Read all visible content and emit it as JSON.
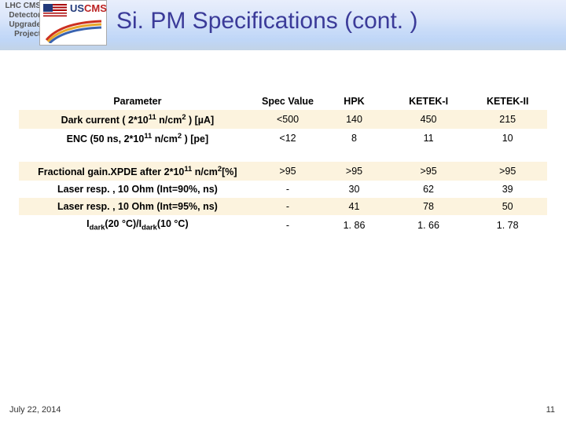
{
  "header": {
    "side_label": "LHC CMS\nDetector\nUpgrade\nProject",
    "logo_us": "US",
    "logo_cms": "CMS",
    "title": "Si. PM Specifications (cont. )",
    "banner_colors": [
      "#e8eefc",
      "#dbe6fa",
      "#c9dcf8",
      "#bfd6f7",
      "#c2d3e6"
    ],
    "title_color": "#3b3b99"
  },
  "table": {
    "alt_row_color": "#fcf3de",
    "columns": [
      {
        "key": "param",
        "label": "Parameter"
      },
      {
        "key": "spec",
        "label": "Spec Value"
      },
      {
        "key": "hpk",
        "label": "HPK"
      },
      {
        "key": "k1",
        "label": "KETEK-I"
      },
      {
        "key": "k2",
        "label": "KETEK-II"
      }
    ],
    "rows": [
      {
        "param_html": "Dark current ( 2*10<sup>11</sup> n/cm<sup>2</sup> ) [µA]",
        "spec": "<500",
        "hpk": "140",
        "k1": "450",
        "k2": "215",
        "shade": "odd"
      },
      {
        "param_html": "ENC (50 ns, 2*10<sup>11</sup> n/cm<sup>2</sup> ) [pe]",
        "spec": "<12",
        "hpk": "8",
        "k1": "11",
        "k2": "10",
        "shade": "even"
      },
      {
        "gap": true
      },
      {
        "param_html": "Fractional gain.XPDE after 2*10<sup>11</sup> n/cm<sup>2</sup>[%]",
        "spec": ">95",
        "hpk": ">95",
        "k1": ">95",
        "k2": ">95",
        "shade": "odd"
      },
      {
        "param_html": "Laser resp. , 10 Ohm (Int=90%, ns)",
        "spec": "-",
        "hpk": "30",
        "k1": "62",
        "k2": "39",
        "shade": "even"
      },
      {
        "param_html": "Laser resp. , 10 Ohm (Int=95%, ns)",
        "spec": "-",
        "hpk": "41",
        "k1": "78",
        "k2": "50",
        "shade": "odd"
      },
      {
        "param_html": "I<sub>dark</sub>(20 °C)/I<sub>dark</sub>(10 °C)",
        "spec": "-",
        "hpk": "1. 86",
        "k1": "1. 66",
        "k2": "1. 78",
        "shade": "even"
      }
    ]
  },
  "footer": {
    "date": "July 22, 2014",
    "page": "11"
  }
}
